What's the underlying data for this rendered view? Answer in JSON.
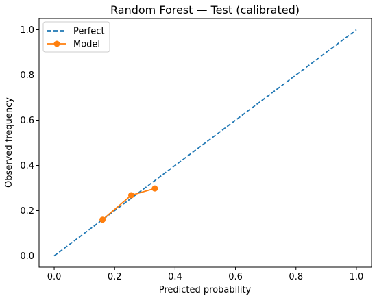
{
  "chart_data": {
    "type": "line",
    "title": "Random Forest — Test (calibrated)",
    "xlabel": "Predicted probability",
    "ylabel": "Observed frequency",
    "xlim": [
      -0.05,
      1.05
    ],
    "ylim": [
      -0.05,
      1.05
    ],
    "xticks": [
      0.0,
      0.2,
      0.4,
      0.6,
      0.8,
      1.0
    ],
    "yticks": [
      0.0,
      0.2,
      0.4,
      0.6,
      0.8,
      1.0
    ],
    "xtick_labels": [
      "0.0",
      "0.2",
      "0.4",
      "0.6",
      "0.8",
      "1.0"
    ],
    "ytick_labels": [
      "0.0",
      "0.2",
      "0.4",
      "0.6",
      "0.8",
      "1.0"
    ],
    "grid": false,
    "legend": {
      "position": "upper-left",
      "entries": [
        "Perfect",
        "Model"
      ]
    },
    "series": [
      {
        "name": "Perfect",
        "style": "dashed",
        "color": "#1f77b4",
        "x": [
          0.0,
          1.0
        ],
        "y": [
          0.0,
          1.0
        ]
      },
      {
        "name": "Model",
        "style": "line-marker",
        "color": "#ff7f0e",
        "x": [
          0.16,
          0.255,
          0.333
        ],
        "y": [
          0.16,
          0.268,
          0.298
        ]
      }
    ]
  }
}
